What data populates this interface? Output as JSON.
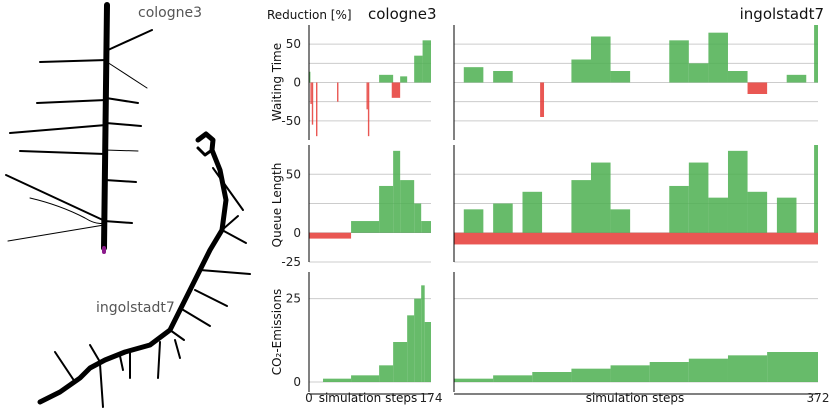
{
  "maps": {
    "cologne_label": "cologne3",
    "ingolstadt_label": "ingolstadt7"
  },
  "colors": {
    "positive": "#4caf50",
    "negative": "#e53935",
    "grid": "#cccccc",
    "axis": "#000000",
    "road": "#000000",
    "marker": "#8b1a8b"
  },
  "chart_data": {
    "type": "bar",
    "header_label": "Reduction [%]",
    "xlabel": "simulation steps",
    "panels": [
      {
        "id": "cologne3",
        "title": "cologne3",
        "x_ticks": [
          "0",
          "174"
        ],
        "xlim": [
          0,
          174
        ]
      },
      {
        "id": "ingolstadt7",
        "title": "ingolstadt7",
        "x_ticks": [
          "372"
        ],
        "xlim": [
          0,
          372
        ]
      }
    ],
    "rows": [
      {
        "ylabel": "Waiting Time",
        "ylim": [
          -75,
          75
        ],
        "y_ticks": [
          50,
          0,
          -50
        ],
        "gridlines": [
          50,
          25,
          -25,
          -50
        ],
        "cologne3_segments": [
          {
            "from": 0,
            "to": 80,
            "level": 0
          },
          {
            "from": 0,
            "to": 2,
            "level": 14
          },
          {
            "from": 2,
            "to": 4,
            "level": -28
          },
          {
            "from": 4,
            "to": 6,
            "level": -55
          },
          {
            "from": 10,
            "to": 12,
            "level": -70
          },
          {
            "from": 40,
            "to": 42,
            "level": -25
          },
          {
            "from": 82,
            "to": 84,
            "level": -35
          },
          {
            "from": 84,
            "to": 86,
            "level": -70
          },
          {
            "from": 100,
            "to": 120,
            "level": 10
          },
          {
            "from": 118,
            "to": 130,
            "level": -20
          },
          {
            "from": 130,
            "to": 140,
            "level": 8
          },
          {
            "from": 150,
            "to": 162,
            "level": 35
          },
          {
            "from": 162,
            "to": 174,
            "level": 55
          }
        ],
        "ingolstadt7_segments": [
          {
            "from": 0,
            "to": 372,
            "level": 0
          },
          {
            "from": 10,
            "to": 30,
            "level": 20
          },
          {
            "from": 40,
            "to": 60,
            "level": 15
          },
          {
            "from": 88,
            "to": 92,
            "level": -45
          },
          {
            "from": 120,
            "to": 140,
            "level": 30
          },
          {
            "from": 140,
            "to": 160,
            "level": 60
          },
          {
            "from": 160,
            "to": 180,
            "level": 15
          },
          {
            "from": 220,
            "to": 240,
            "level": 55
          },
          {
            "from": 240,
            "to": 260,
            "level": 25
          },
          {
            "from": 260,
            "to": 280,
            "level": 65
          },
          {
            "from": 280,
            "to": 300,
            "level": 15
          },
          {
            "from": 300,
            "to": 320,
            "level": -15
          },
          {
            "from": 340,
            "to": 360,
            "level": 10
          },
          {
            "from": 368,
            "to": 372,
            "level": 75
          }
        ]
      },
      {
        "ylabel": "Queue Length",
        "ylim": [
          -25,
          75
        ],
        "y_ticks": [
          50,
          0,
          -25
        ],
        "gridlines": [
          50,
          25,
          -25
        ],
        "cologne3_segments": [
          {
            "from": 0,
            "to": 60,
            "level": -5
          },
          {
            "from": 60,
            "to": 100,
            "level": 10
          },
          {
            "from": 100,
            "to": 120,
            "level": 40
          },
          {
            "from": 120,
            "to": 130,
            "level": 70
          },
          {
            "from": 130,
            "to": 150,
            "level": 45
          },
          {
            "from": 150,
            "to": 160,
            "level": 25
          },
          {
            "from": 160,
            "to": 174,
            "level": 10
          }
        ],
        "ingolstadt7_segments": [
          {
            "from": 0,
            "to": 372,
            "level": -10
          },
          {
            "from": 10,
            "to": 30,
            "level": 20
          },
          {
            "from": 40,
            "to": 60,
            "level": 25
          },
          {
            "from": 70,
            "to": 90,
            "level": 35
          },
          {
            "from": 120,
            "to": 140,
            "level": 45
          },
          {
            "from": 140,
            "to": 160,
            "level": 60
          },
          {
            "from": 160,
            "to": 180,
            "level": 20
          },
          {
            "from": 220,
            "to": 240,
            "level": 40
          },
          {
            "from": 240,
            "to": 260,
            "level": 60
          },
          {
            "from": 260,
            "to": 280,
            "level": 30
          },
          {
            "from": 280,
            "to": 300,
            "level": 70
          },
          {
            "from": 300,
            "to": 320,
            "level": 35
          },
          {
            "from": 330,
            "to": 350,
            "level": 30
          },
          {
            "from": 368,
            "to": 372,
            "level": 75
          }
        ]
      },
      {
        "ylabel": "CO₂-Emissions",
        "ylim": [
          -3,
          33
        ],
        "y_ticks": [
          25,
          0
        ],
        "gridlines": [
          25
        ],
        "cologne3_segments": [
          {
            "from": 0,
            "to": 20,
            "level": 0
          },
          {
            "from": 20,
            "to": 60,
            "level": 1
          },
          {
            "from": 60,
            "to": 100,
            "level": 2
          },
          {
            "from": 100,
            "to": 120,
            "level": 5
          },
          {
            "from": 120,
            "to": 140,
            "level": 12
          },
          {
            "from": 140,
            "to": 150,
            "level": 20
          },
          {
            "from": 150,
            "to": 160,
            "level": 25
          },
          {
            "from": 160,
            "to": 165,
            "level": 29
          },
          {
            "from": 165,
            "to": 174,
            "level": 18
          }
        ],
        "ingolstadt7_segments": [
          {
            "from": 0,
            "to": 40,
            "level": 1
          },
          {
            "from": 40,
            "to": 80,
            "level": 2
          },
          {
            "from": 80,
            "to": 120,
            "level": 3
          },
          {
            "from": 120,
            "to": 160,
            "level": 4
          },
          {
            "from": 160,
            "to": 200,
            "level": 5
          },
          {
            "from": 200,
            "to": 240,
            "level": 6
          },
          {
            "from": 240,
            "to": 280,
            "level": 7
          },
          {
            "from": 280,
            "to": 320,
            "level": 8
          },
          {
            "from": 320,
            "to": 372,
            "level": 9
          }
        ]
      }
    ]
  }
}
